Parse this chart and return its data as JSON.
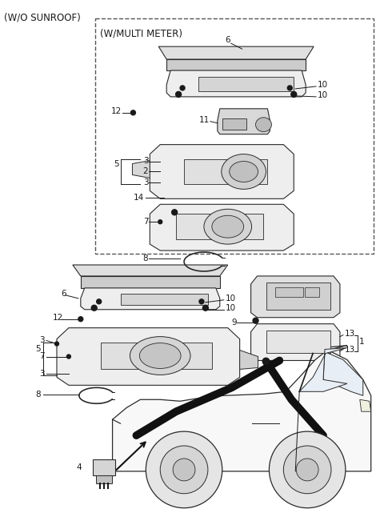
{
  "title": "(W/O SUNROOF)",
  "subtitle": "(W/MULTI METER)",
  "background_color": "#ffffff",
  "text_color": "#1a1a1a",
  "figsize": [
    4.8,
    6.56
  ],
  "dpi": 100,
  "line_color": "#1a1a1a",
  "part_edge": "#2a2a2a",
  "part_fill": "#f5f5f5",
  "part_fill2": "#e8e8e8",
  "part_fill3": "#d8d8d8"
}
